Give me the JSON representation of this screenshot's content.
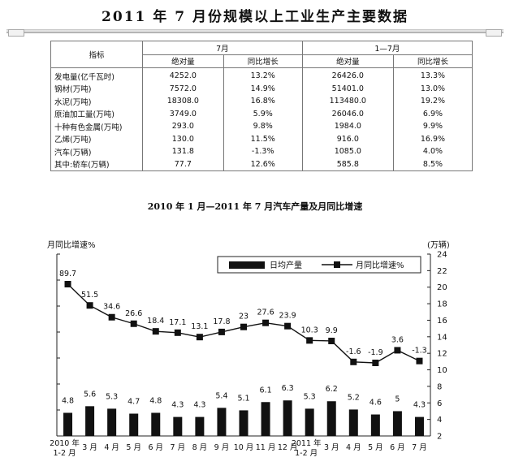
{
  "page": {
    "title": "2011 年 7 月份规模以上工业生产主要数据"
  },
  "table": {
    "header_index": "指标",
    "group_month": "7月",
    "group_ytd": "1—7月",
    "sub_headers": [
      "绝对量",
      "同比增长",
      "绝对量",
      "同比增长"
    ],
    "rows": [
      {
        "label": "发电量(亿千瓦时)",
        "m_abs": "4252.0",
        "m_yoy": "13.2%",
        "y_abs": "26426.0",
        "y_yoy": "13.3%"
      },
      {
        "label": "钢材(万吨)",
        "m_abs": "7572.0",
        "m_yoy": "14.9%",
        "y_abs": "51401.0",
        "y_yoy": "13.0%"
      },
      {
        "label": "水泥(万吨)",
        "m_abs": "18308.0",
        "m_yoy": "16.8%",
        "y_abs": "113480.0",
        "y_yoy": "19.2%"
      },
      {
        "label": "原油加工量(万吨)",
        "m_abs": "3749.0",
        "m_yoy": "5.9%",
        "y_abs": "26046.0",
        "y_yoy": "6.9%"
      },
      {
        "label": "十种有色金属(万吨)",
        "m_abs": "293.0",
        "m_yoy": "9.8%",
        "y_abs": "1984.0",
        "y_yoy": "9.9%"
      },
      {
        "label": "乙烯(万吨)",
        "m_abs": "130.0",
        "m_yoy": "11.5%",
        "y_abs": "916.0",
        "y_yoy": "16.9%"
      },
      {
        "label": "汽车(万辆)",
        "m_abs": "131.8",
        "m_yoy": "-1.3%",
        "y_abs": "1085.0",
        "y_yoy": "4.0%"
      },
      {
        "label": "其中:轿车(万辆)",
        "m_abs": "77.7",
        "m_yoy": "12.6%",
        "y_abs": "585.8",
        "y_yoy": "8.5%"
      }
    ]
  },
  "chart_data": {
    "type": "bar",
    "title": "2010 年 1 月—2011 年 7 月汽车产量及月同比增速",
    "left_axis_label": "月同比增速%",
    "right_axis_label": "(万辆)",
    "categories": [
      [
        "2010 年",
        "1-2 月"
      ],
      [
        "3 月"
      ],
      [
        "4 月"
      ],
      [
        "5 月"
      ],
      [
        "6 月"
      ],
      [
        "7 月"
      ],
      [
        "8 月"
      ],
      [
        "9 月"
      ],
      [
        "10 月"
      ],
      [
        "11 月"
      ],
      [
        "12 月"
      ],
      [
        "2011 年",
        "1-2 月"
      ],
      [
        "3 月"
      ],
      [
        "4 月"
      ],
      [
        "5 月"
      ],
      [
        "6 月"
      ],
      [
        "7 月"
      ]
    ],
    "series": [
      {
        "name": "日均产量",
        "type": "bar",
        "axis": "right",
        "values": [
          4.8,
          5.6,
          5.3,
          4.7,
          4.8,
          4.3,
          4.3,
          5.4,
          5.1,
          6.1,
          6.3,
          5.3,
          6.2,
          5.2,
          4.6,
          5,
          4.3
        ]
      },
      {
        "name": "月同比增速%",
        "type": "line",
        "axis": "left",
        "values": [
          89.7,
          51.5,
          34.6,
          26.6,
          18.4,
          17.1,
          13.1,
          17.8,
          23,
          27.6,
          23.9,
          10.3,
          9.9,
          -1.6,
          -1.9,
          3.6,
          -1.3
        ]
      }
    ],
    "right_axis": {
      "ylim": [
        2,
        24
      ],
      "ticks": [
        2,
        4,
        6,
        8,
        10,
        12,
        14,
        16,
        18,
        20,
        22,
        24
      ]
    },
    "left_axis": {
      "ticks": 7
    },
    "legend_position": "top-right",
    "colors": {
      "bar": "#111111",
      "line": "#111111"
    }
  }
}
